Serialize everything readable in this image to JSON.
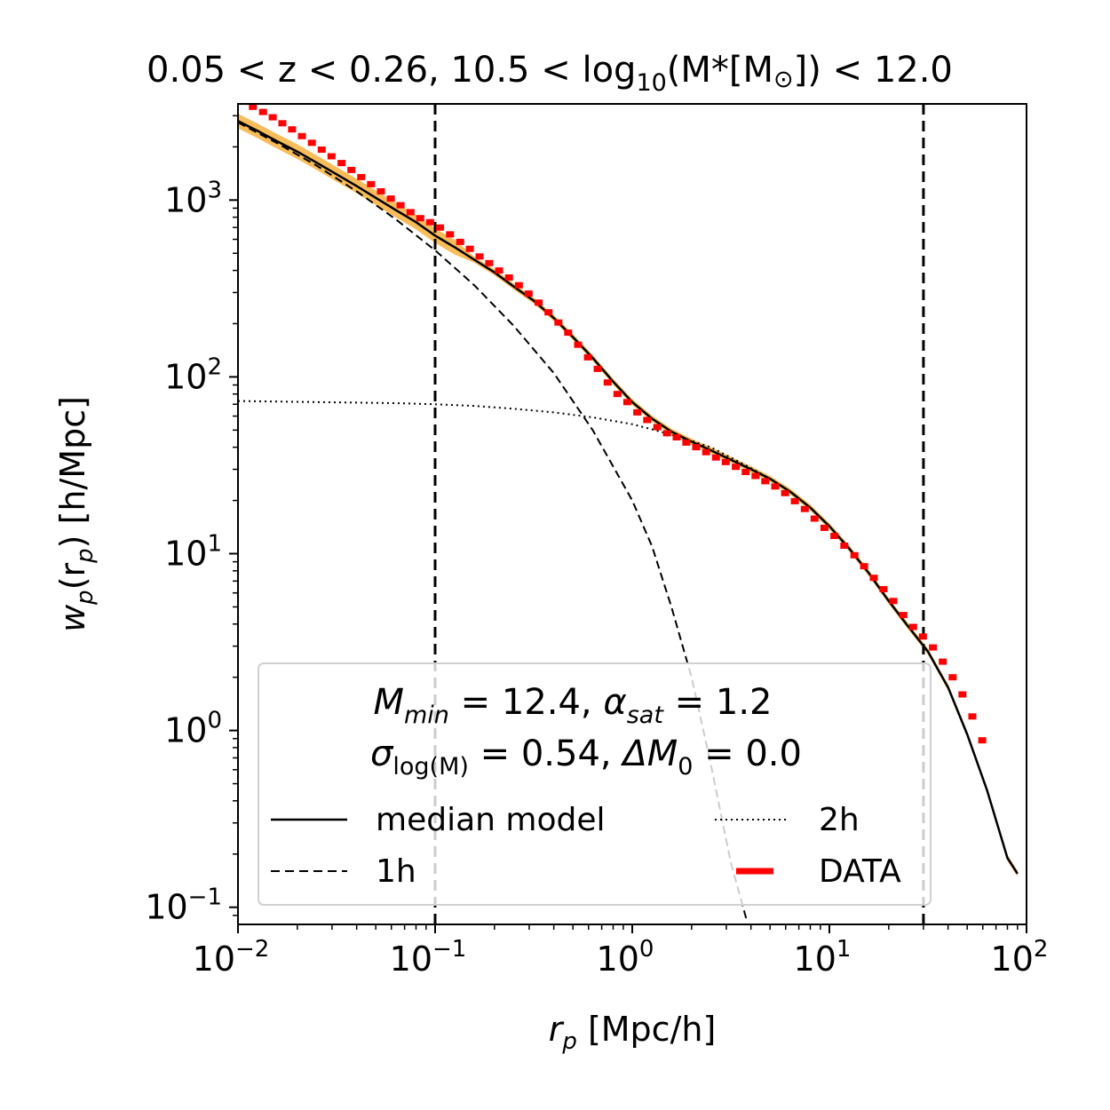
{
  "chart_data": {
    "type": "line",
    "title": "0.05 < z < 0.26, 10.5 < log10(M*[M⊙]) < 12.0",
    "title_parts": {
      "lead": "0.05 < z < 0.26, 10.5 < log",
      "sub": "10",
      "mid": "(M*[M",
      "sun": "⊙",
      "tail": "]) < 12.0"
    },
    "xlabel": "r_p [Mpc/h]",
    "xlabel_parts": {
      "var": "r",
      "sub": "p",
      "rest": " [Mpc/h]"
    },
    "ylabel": "w_p(r_p) [h/Mpc]",
    "ylabel_parts": {
      "w": "w",
      "sub1": "p",
      "mid": "(r",
      "sub2": "p",
      "rest": ") [h/Mpc]"
    },
    "x_scale": "log",
    "y_scale": "log",
    "xlim": [
      0.01,
      100
    ],
    "ylim": [
      0.08,
      3500
    ],
    "x_ticks": [
      {
        "value": 0.01,
        "base": "10",
        "exp": "−2"
      },
      {
        "value": 0.1,
        "base": "10",
        "exp": "−1"
      },
      {
        "value": 1,
        "base": "10",
        "exp": "0"
      },
      {
        "value": 10,
        "base": "10",
        "exp": "1"
      },
      {
        "value": 100,
        "base": "10",
        "exp": "2"
      }
    ],
    "y_ticks": [
      {
        "value": 0.1,
        "base": "10",
        "exp": "−1"
      },
      {
        "value": 1,
        "base": "10",
        "exp": "0"
      },
      {
        "value": 10,
        "base": "10",
        "exp": "1"
      },
      {
        "value": 100,
        "base": "10",
        "exp": "2"
      },
      {
        "value": 1000,
        "base": "10",
        "exp": "3"
      }
    ],
    "vlines": [
      0.1,
      30
    ],
    "colors": {
      "model": "#000000",
      "band": "#f5a623",
      "data": "#ff0000",
      "one_halo": "#000000",
      "two_halo": "#000000"
    },
    "series": [
      {
        "name": "median model",
        "style": "solid",
        "x": [
          0.01,
          0.0126,
          0.0158,
          0.02,
          0.025,
          0.0316,
          0.04,
          0.05,
          0.063,
          0.08,
          0.1,
          0.126,
          0.158,
          0.2,
          0.25,
          0.316,
          0.4,
          0.5,
          0.63,
          0.8,
          1.0,
          1.26,
          1.58,
          2.0,
          2.5,
          3.16,
          4.0,
          5.0,
          6.3,
          8.0,
          10,
          12.6,
          15.8,
          20,
          25,
          31.6,
          40,
          50,
          63,
          80,
          90
        ],
        "y": [
          2800,
          2460,
          2150,
          1880,
          1630,
          1400,
          1200,
          1030,
          880,
          750,
          630,
          540,
          460,
          390,
          325,
          270,
          215,
          168,
          128,
          94,
          72,
          58,
          49,
          43,
          38.5,
          34,
          30,
          26.5,
          22.5,
          18.2,
          14.3,
          10.7,
          7.8,
          5.4,
          3.9,
          2.8,
          1.75,
          0.95,
          0.46,
          0.19,
          0.155
        ]
      },
      {
        "name": "1h",
        "style": "dashed",
        "x": [
          0.01,
          0.0158,
          0.025,
          0.04,
          0.063,
          0.1,
          0.158,
          0.25,
          0.4,
          0.63,
          1.0,
          1.26,
          1.58,
          2.0,
          2.5,
          3.16,
          3.8
        ],
        "y": [
          2750,
          2100,
          1570,
          1120,
          780,
          520,
          330,
          195,
          105,
          50,
          20,
          11,
          5.0,
          2.0,
          0.65,
          0.18,
          0.085
        ]
      },
      {
        "name": "2h",
        "style": "dotted",
        "x": [
          0.01,
          0.025,
          0.063,
          0.1,
          0.158,
          0.25,
          0.4,
          0.63,
          1.0,
          1.26,
          1.58,
          2.0,
          2.5,
          3.16,
          4.0,
          5.0,
          6.3,
          8.0,
          10,
          12.6,
          15.8,
          20,
          25,
          31.6,
          40,
          50,
          63,
          80,
          90
        ],
        "y": [
          73,
          72,
          71,
          70,
          68.5,
          66,
          63,
          59,
          54,
          50.5,
          47,
          43.5,
          40,
          35,
          30.5,
          26.5,
          22.5,
          18.2,
          14.3,
          10.7,
          7.8,
          5.4,
          3.9,
          2.8,
          1.75,
          0.95,
          0.46,
          0.19,
          0.155
        ]
      },
      {
        "name": "DATA",
        "style": "markers",
        "x": [
          0.0106,
          0.0119,
          0.0134,
          0.015,
          0.0168,
          0.0188,
          0.0211,
          0.0237,
          0.0266,
          0.0298,
          0.0335,
          0.0376,
          0.0422,
          0.0473,
          0.0531,
          0.0596,
          0.0668,
          0.075,
          0.0841,
          0.0944,
          0.106,
          0.119,
          0.134,
          0.15,
          0.168,
          0.188,
          0.211,
          0.237,
          0.266,
          0.298,
          0.335,
          0.376,
          0.422,
          0.473,
          0.531,
          0.596,
          0.668,
          0.75,
          0.841,
          0.944,
          1.06,
          1.19,
          1.34,
          1.5,
          1.68,
          1.88,
          2.11,
          2.37,
          2.66,
          2.98,
          3.35,
          3.76,
          4.22,
          4.73,
          5.31,
          5.96,
          6.68,
          7.5,
          8.41,
          9.44,
          10.6,
          11.9,
          13.4,
          15.0,
          16.8,
          18.8,
          21.1,
          23.7,
          26.6,
          29.8,
          33.5,
          37.6,
          42.2,
          47.3,
          53.1,
          59.6
        ],
        "y": [
          3600,
          3370,
          3150,
          2940,
          2720,
          2510,
          2300,
          2110,
          1930,
          1770,
          1620,
          1480,
          1350,
          1230,
          1120,
          1020,
          935,
          855,
          790,
          750,
          700,
          640,
          580,
          530,
          480,
          440,
          400,
          365,
          330,
          296,
          263,
          232,
          203,
          178,
          152,
          129,
          111,
          93,
          80,
          72,
          63,
          57,
          52,
          48,
          45.5,
          42.5,
          40,
          37.5,
          35,
          33,
          31,
          29,
          27.5,
          25.7,
          24,
          22,
          19.8,
          17.9,
          15.8,
          14,
          12.6,
          11.1,
          9.8,
          8.5,
          7.3,
          6.3,
          5.4,
          4.5,
          3.85,
          3.4,
          2.95,
          2.45,
          2.0,
          1.6,
          1.2,
          0.88
        ]
      }
    ],
    "legend": {
      "position": "lower-left",
      "param_line1": {
        "M": "M",
        "M_sub": "min",
        "eq1": " = 12.4, ",
        "alpha": "α",
        "alpha_sub": "sat",
        "eq2": " = 1.2"
      },
      "param_line2": {
        "sigma": "σ",
        "sigma_sub": "log(M)",
        "eq1": " = 0.54, ",
        "delta": "ΔM",
        "delta_sub": "0",
        "eq2": " = 0.0"
      },
      "entries": [
        "median model",
        "2h",
        "1h",
        "DATA"
      ]
    }
  }
}
